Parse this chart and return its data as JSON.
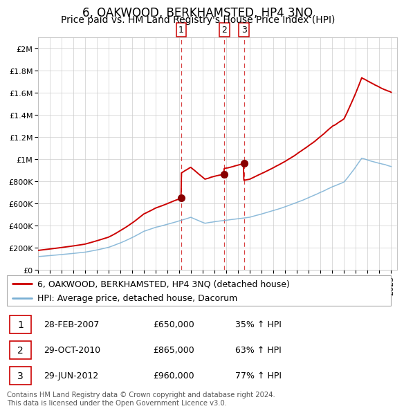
{
  "title": "6, OAKWOOD, BERKHAMSTED, HP4 3NQ",
  "subtitle": "Price paid vs. HM Land Registry's House Price Index (HPI)",
  "xlim": [
    1995.0,
    2025.5
  ],
  "ylim": [
    0,
    2100000
  ],
  "yticks": [
    0,
    200000,
    400000,
    600000,
    800000,
    1000000,
    1200000,
    1400000,
    1600000,
    1800000,
    2000000
  ],
  "ytick_labels": [
    "£0",
    "£200K",
    "£400K",
    "£600K",
    "£800K",
    "£1M",
    "£1.2M",
    "£1.4M",
    "£1.6M",
    "£1.8M",
    "£2M"
  ],
  "red_color": "#cc0000",
  "blue_color": "#7ab0d4",
  "marker_color": "#880000",
  "vline_color": "#cc0000",
  "grid_color": "#cccccc",
  "background_color": "#ffffff",
  "transactions": [
    {
      "label": "1",
      "date": 2007.167,
      "price": 650000,
      "pct": "35%",
      "date_str": "28-FEB-2007",
      "price_str": "£650,000"
    },
    {
      "label": "2",
      "date": 2010.833,
      "price": 865000,
      "pct": "63%",
      "date_str": "29-OCT-2010",
      "price_str": "£865,000"
    },
    {
      "label": "3",
      "date": 2012.5,
      "price": 960000,
      "pct": "77%",
      "date_str": "29-JUN-2012",
      "price_str": "£960,000"
    }
  ],
  "legend_label_red": "6, OAKWOOD, BERKHAMSTED, HP4 3NQ (detached house)",
  "legend_label_blue": "HPI: Average price, detached house, Dacorum",
  "footer": "Contains HM Land Registry data © Crown copyright and database right 2024.\nThis data is licensed under the Open Government Licence v3.0.",
  "title_fontsize": 12,
  "subtitle_fontsize": 10,
  "tick_fontsize": 8,
  "legend_fontsize": 9,
  "table_fontsize": 9
}
